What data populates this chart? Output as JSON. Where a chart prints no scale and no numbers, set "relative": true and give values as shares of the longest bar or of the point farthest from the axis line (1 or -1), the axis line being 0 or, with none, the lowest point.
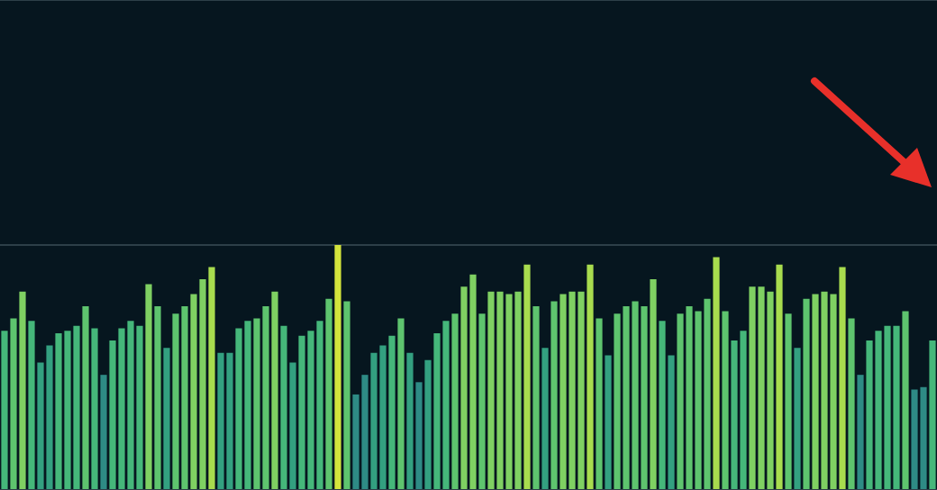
{
  "chart_data": {
    "type": "bar",
    "relative": true,
    "grid": "y",
    "categories": [
      null,
      null,
      null,
      null,
      null,
      null,
      null,
      null,
      null,
      null,
      null,
      null,
      null,
      null,
      null,
      null,
      null,
      null,
      null,
      null,
      null,
      null,
      null,
      null,
      null,
      null,
      null,
      null,
      null,
      null,
      null,
      null,
      null,
      null,
      null,
      null,
      null,
      null,
      null,
      null,
      null,
      null,
      null,
      null,
      null,
      null,
      null,
      null,
      null,
      null,
      null,
      null,
      null,
      null,
      null,
      null,
      null,
      null,
      null,
      null,
      null,
      null,
      null,
      null,
      null,
      null,
      null,
      null,
      null,
      null,
      null,
      null,
      null,
      null,
      null,
      null,
      null,
      null,
      null,
      null,
      null,
      null,
      null,
      null,
      null,
      null,
      null,
      null,
      null,
      null,
      null,
      null,
      null,
      null,
      null,
      null,
      null,
      null,
      null,
      null,
      null,
      null,
      null,
      null
    ],
    "values": [
      0.65,
      0.7,
      0.81,
      0.69,
      0.52,
      0.59,
      0.64,
      0.65,
      0.67,
      0.75,
      0.66,
      0.47,
      0.61,
      0.66,
      0.69,
      0.67,
      0.84,
      0.75,
      0.58,
      0.72,
      0.75,
      0.8,
      0.86,
      0.91,
      0.56,
      0.56,
      0.66,
      0.69,
      0.7,
      0.75,
      0.81,
      0.67,
      0.52,
      0.63,
      0.65,
      0.69,
      0.78,
      1,
      0.77,
      0.39,
      0.47,
      0.56,
      0.59,
      0.63,
      0.7,
      0.56,
      0.44,
      0.53,
      0.64,
      0.69,
      0.72,
      0.83,
      0.88,
      0.72,
      0.81,
      0.81,
      0.8,
      0.81,
      0.92,
      0.75,
      0.58,
      0.77,
      0.8,
      0.81,
      0.81,
      0.92,
      0.7,
      0.55,
      0.72,
      0.75,
      0.77,
      0.75,
      0.86,
      0.69,
      0.55,
      0.72,
      0.75,
      0.73,
      0.78,
      0.95,
      0.73,
      0.61,
      0.65,
      0.83,
      0.83,
      0.81,
      0.92,
      0.72,
      0.58,
      0.78,
      0.8,
      0.81,
      0.8,
      0.91,
      0.7,
      0.47,
      0.61,
      0.65,
      0.67,
      0.67,
      0.73,
      0.41,
      0.42,
      0.61
    ],
    "colors": [
      "#45b77a",
      "#5ec46e",
      "#7fd062",
      "#45b77a",
      "#33a080",
      "#33a080",
      "#45b77a",
      "#45b77a",
      "#45b77a",
      "#5ec46e",
      "#45b77a",
      "#2e8b85",
      "#45b77a",
      "#45b77a",
      "#45b77a",
      "#45b77a",
      "#7fd062",
      "#5ec46e",
      "#33a080",
      "#5ec46e",
      "#5ec46e",
      "#7fd062",
      "#7fd062",
      "#a8dc4e",
      "#33a080",
      "#33a080",
      "#45b77a",
      "#45b77a",
      "#5ec46e",
      "#5ec46e",
      "#7fd062",
      "#45b77a",
      "#33a080",
      "#45b77a",
      "#45b77a",
      "#45b77a",
      "#5ec46e",
      "#d4e43c",
      "#5ec46e",
      "#2e8b85",
      "#2e8b85",
      "#33a080",
      "#33a080",
      "#45b77a",
      "#5ec46e",
      "#33a080",
      "#2e8b85",
      "#33a080",
      "#45b77a",
      "#45b77a",
      "#5ec46e",
      "#7fd062",
      "#7fd062",
      "#5ec46e",
      "#7fd062",
      "#7fd062",
      "#7fd062",
      "#7fd062",
      "#a8dc4e",
      "#5ec46e",
      "#33a080",
      "#5ec46e",
      "#7fd062",
      "#7fd062",
      "#7fd062",
      "#a8dc4e",
      "#5ec46e",
      "#33a080",
      "#5ec46e",
      "#5ec46e",
      "#5ec46e",
      "#5ec46e",
      "#7fd062",
      "#45b77a",
      "#33a080",
      "#5ec46e",
      "#5ec46e",
      "#5ec46e",
      "#5ec46e",
      "#a8dc4e",
      "#5ec46e",
      "#45b77a",
      "#45b77a",
      "#7fd062",
      "#7fd062",
      "#7fd062",
      "#a8dc4e",
      "#5ec46e",
      "#33a080",
      "#5ec46e",
      "#7fd062",
      "#7fd062",
      "#7fd062",
      "#a8dc4e",
      "#5ec46e",
      "#2e8b85",
      "#45b77a",
      "#45b77a",
      "#45b77a",
      "#45b77a",
      "#5ec46e",
      "#2e8b85",
      "#2e8b85",
      "#45b77a"
    ]
  }
}
